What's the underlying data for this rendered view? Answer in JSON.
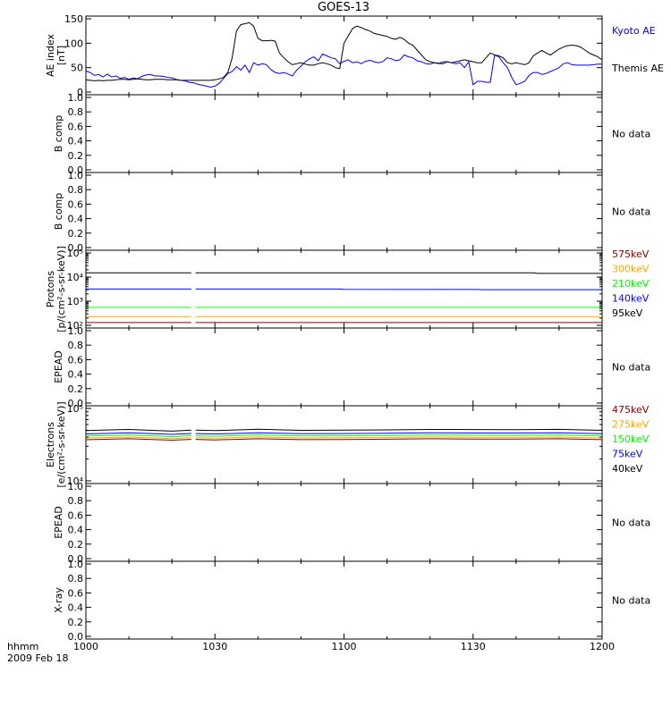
{
  "chart_data": {
    "title": "GOES-13",
    "type": "line",
    "x_ticks": [
      "1000",
      "1030",
      "1100",
      "1130",
      "1200"
    ],
    "x_range_minutes": [
      0,
      120
    ],
    "x_corner_label": "hhmm",
    "date_label": "2009 Feb 18",
    "panels": [
      {
        "id": "ae",
        "ylabel_lines": [
          "AE index",
          "[nT]"
        ],
        "yscale": "linear",
        "ylim": [
          0,
          150
        ],
        "yticks": [
          "0",
          "50",
          "100",
          "150"
        ],
        "series": [
          {
            "name": "Kyoto AE",
            "color": "#0000ff",
            "x": [
              0,
              1,
              2,
              3,
              4,
              5,
              6,
              7,
              8,
              9,
              10,
              11,
              12,
              13,
              14,
              15,
              16,
              17,
              18,
              19,
              20,
              21,
              22,
              23,
              24,
              25,
              26,
              27,
              28,
              29,
              30,
              31,
              32,
              33,
              34,
              35,
              36,
              37,
              38,
              39,
              40,
              41,
              42,
              43,
              44,
              45,
              46,
              47,
              48,
              49,
              50,
              51,
              52,
              53,
              54,
              55,
              56,
              57,
              58,
              59,
              60,
              61,
              62,
              63,
              64,
              65,
              66,
              67,
              68,
              69,
              70,
              71,
              72,
              73,
              74,
              75,
              76,
              77,
              78,
              79,
              80,
              81,
              82,
              83,
              84,
              85,
              86,
              87,
              88,
              89,
              90,
              91,
              92,
              93,
              94,
              95,
              96,
              97,
              98,
              99,
              100,
              101,
              102,
              103,
              104,
              105,
              106,
              107,
              108,
              109,
              110,
              111,
              112,
              113,
              114,
              115,
              116,
              117,
              118,
              119,
              120
            ],
            "y": [
              43,
              40,
              34,
              36,
              31,
              37,
              31,
              33,
              28,
              30,
              26,
              29,
              27,
              32,
              35,
              36,
              33,
              33,
              32,
              30,
              29,
              26,
              24,
              23,
              20,
              19,
              16,
              14,
              12,
              10,
              12,
              18,
              28,
              38,
              42,
              52,
              45,
              55,
              40,
              60,
              55,
              58,
              56,
              46,
              40,
              38,
              40,
              37,
              33,
              45,
              53,
              62,
              68,
              72,
              64,
              78,
              74,
              70,
              68,
              58,
              63,
              66,
              60,
              62,
              58,
              63,
              65,
              62,
              60,
              62,
              70,
              68,
              64,
              66,
              76,
              72,
              70,
              64,
              62,
              58,
              57,
              60,
              58,
              62,
              62,
              60,
              58,
              60,
              50,
              62,
              15,
              22,
              22,
              20,
              20,
              76,
              72,
              60,
              50,
              30,
              15,
              18,
              22,
              34,
              40,
              40,
              36,
              38,
              42,
              46,
              50,
              58,
              60,
              56,
              55,
              55,
              55,
              55,
              56,
              57,
              57
            ]
          },
          {
            "name": "Themis AE",
            "color": "#000000",
            "x": [
              0,
              1,
              2,
              3,
              4,
              5,
              6,
              7,
              8,
              9,
              10,
              11,
              12,
              13,
              14,
              15,
              16,
              17,
              18,
              19,
              20,
              21,
              22,
              23,
              24,
              25,
              26,
              27,
              28,
              29,
              30,
              31,
              32,
              33,
              34,
              35,
              36,
              37,
              38,
              39,
              40,
              41,
              42,
              43,
              44,
              45,
              46,
              47,
              48,
              49,
              50,
              51,
              52,
              53,
              54,
              55,
              56,
              57,
              58,
              59,
              60,
              61,
              62,
              63,
              64,
              65,
              66,
              67,
              68,
              69,
              70,
              71,
              72,
              73,
              74,
              75,
              76,
              77,
              78,
              79,
              80,
              81,
              82,
              83,
              84,
              85,
              86,
              87,
              88,
              89,
              90,
              91,
              92,
              93,
              94,
              95,
              96,
              97,
              98,
              99,
              100,
              101,
              102,
              103,
              104,
              105,
              106,
              107,
              108,
              109,
              110,
              111,
              112,
              113,
              114,
              115,
              116,
              117,
              118,
              119,
              120
            ],
            "y": [
              25,
              24,
              23,
              24,
              23,
              24,
              24,
              25,
              26,
              26,
              25,
              26,
              27,
              26,
              25,
              25,
              26,
              26,
              26,
              25,
              25,
              25,
              24,
              24,
              24,
              24,
              24,
              24,
              24,
              24,
              25,
              27,
              30,
              40,
              70,
              125,
              138,
              140,
              142,
              135,
              110,
              105,
              105,
              106,
              104,
              80,
              70,
              62,
              56,
              58,
              60,
              57,
              55,
              55,
              58,
              60,
              58,
              55,
              50,
              48,
              100,
              115,
              130,
              135,
              132,
              128,
              125,
              120,
              118,
              116,
              114,
              110,
              108,
              112,
              108,
              100,
              96,
              86,
              76,
              66,
              62,
              60,
              59,
              58,
              62,
              60,
              62,
              64,
              66,
              64,
              62,
              60,
              60,
              70,
              80,
              76,
              74,
              70,
              60,
              58,
              60,
              58,
              56,
              60,
              74,
              80,
              85,
              80,
              76,
              82,
              88,
              92,
              95,
              96,
              95,
              92,
              86,
              80,
              76,
              72,
              66
            ]
          }
        ],
        "legend": [
          {
            "label": "Kyoto AE",
            "color": "#0000ff"
          },
          {
            "label": "Themis AE",
            "color": "#000000"
          }
        ]
      },
      {
        "id": "b1",
        "ylabel_lines": [
          "B comp"
        ],
        "yscale": "linear",
        "ylim": [
          0,
          1
        ],
        "yticks": [
          "0.0",
          "0.2",
          "0.4",
          "0.6",
          "0.8",
          "1.0"
        ],
        "note": "No data"
      },
      {
        "id": "b2",
        "ylabel_lines": [
          "B comp"
        ],
        "yscale": "linear",
        "ylim": [
          0,
          1
        ],
        "yticks": [
          "0.0",
          "0.2",
          "0.4",
          "0.6",
          "0.8",
          "1.0"
        ],
        "note": "No data"
      },
      {
        "id": "protons",
        "ylabel_lines": [
          "Protons",
          "[p/(cm²-s-sr-keV)]"
        ],
        "yscale": "log",
        "ylim": [
          100,
          100000
        ],
        "yticks": [
          "10²",
          "10³",
          "10⁴",
          "10⁵"
        ],
        "gap_minutes": [
          24.5,
          25.5
        ],
        "series": [
          {
            "name": "575keV",
            "color": "#7f0000",
            "x": [
              0,
              120
            ],
            "y": [
              130,
              130
            ]
          },
          {
            "name": "300keV",
            "color": "#ffa500",
            "x": [
              0,
              120
            ],
            "y": [
              230,
              230
            ]
          },
          {
            "name": "210keV",
            "color": "#00ff00",
            "x": [
              0,
              120
            ],
            "y": [
              550,
              550
            ]
          },
          {
            "name": "140keV",
            "color": "#0000ff",
            "x": [
              0,
              59,
              60,
              91,
              92,
              120
            ],
            "y": [
              3200,
              3200,
              3100,
              3050,
              3000,
              3000
            ]
          },
          {
            "name": "95keV",
            "color": "#000000",
            "x": [
              0,
              104,
              105,
              120
            ],
            "y": [
              15000,
              15000,
              14200,
              14200
            ]
          }
        ],
        "legend": [
          {
            "label": "575keV",
            "color": "#7f0000"
          },
          {
            "label": "300keV",
            "color": "#ffa500"
          },
          {
            "label": "210keV",
            "color": "#00ff00"
          },
          {
            "label": "140keV",
            "color": "#0000ff"
          },
          {
            "label": "95keV",
            "color": "#000000"
          }
        ]
      },
      {
        "id": "epead1",
        "ylabel_lines": [
          "EPEAD"
        ],
        "yscale": "linear",
        "ylim": [
          0,
          1
        ],
        "yticks": [
          "0.0",
          "0.2",
          "0.4",
          "0.6",
          "0.8",
          "1.0"
        ],
        "note": "No data"
      },
      {
        "id": "electrons",
        "ylabel_lines": [
          "Electrons",
          "[e/(cm²-s-sr-keV)]"
        ],
        "yscale": "log",
        "ylim": [
          10000,
          100000
        ],
        "yticks": [
          "10⁴",
          "10⁵"
        ],
        "gap_minutes": [
          24.5,
          25.5
        ],
        "series": [
          {
            "name": "475keV",
            "color": "#7f0000",
            "x": [
              0,
              10,
              20,
              30,
              40,
              50,
              60,
              70,
              80,
              90,
              100,
              110,
              120
            ],
            "y": [
              37000,
              37500,
              36800,
              37200,
              37600,
              37000,
              37800,
              37400,
              37600,
              38200,
              38000,
              37500,
              37200
            ]
          },
          {
            "name": "275keV",
            "color": "#ffa500",
            "x": [
              0,
              10,
              20,
              30,
              40,
              50,
              60,
              70,
              80,
              90,
              100,
              110,
              120
            ],
            "y": [
              39000,
              39600,
              38800,
              39300,
              39800,
              39000,
              40000,
              39600,
              39800,
              40500,
              40200,
              39600,
              39300
            ]
          },
          {
            "name": "150keV",
            "color": "#00ff00",
            "x": [
              0,
              10,
              20,
              30,
              40,
              50,
              60,
              70,
              80,
              90,
              100,
              110,
              120
            ],
            "y": [
              41500,
              42200,
              41200,
              41800,
              42400,
              41600,
              42600,
              42100,
              42300,
              43200,
              42800,
              42200,
              41800
            ]
          },
          {
            "name": "75keV",
            "color": "#0000ff",
            "x": [
              0,
              10,
              20,
              30,
              40,
              50,
              60,
              70,
              80,
              90,
              100,
              110,
              120
            ],
            "y": [
              44500,
              45300,
              44200,
              44900,
              45500,
              44600,
              45800,
              45200,
              45400,
              46400,
              46000,
              45300,
              44900
            ]
          },
          {
            "name": "40keV",
            "color": "#000000",
            "x": [
              0,
              10,
              20,
              30,
              40,
              50,
              60,
              70,
              80,
              90,
              100,
              110,
              120
            ],
            "y": [
              49500,
              50500,
              49000,
              50000,
              50800,
              49700,
              51000,
              50300,
              50600,
              51800,
              51300,
              50500,
              50000
            ]
          }
        ],
        "legend": [
          {
            "label": "475keV",
            "color": "#7f0000"
          },
          {
            "label": "275keV",
            "color": "#ffa500"
          },
          {
            "label": "150keV",
            "color": "#00ff00"
          },
          {
            "label": "75keV",
            "color": "#0000ff"
          },
          {
            "label": "40keV",
            "color": "#000000"
          }
        ]
      },
      {
        "id": "epead2",
        "ylabel_lines": [
          "EPEAD"
        ],
        "yscale": "linear",
        "ylim": [
          0,
          1
        ],
        "yticks": [
          "0.0",
          "0.2",
          "0.4",
          "0.6",
          "0.8",
          "1.0"
        ],
        "note": "No data"
      },
      {
        "id": "xray",
        "ylabel_lines": [
          "X-ray"
        ],
        "yscale": "linear",
        "ylim": [
          0,
          1
        ],
        "yticks": [
          "0.0",
          "0.2",
          "0.4",
          "0.6",
          "0.8",
          "1.0"
        ],
        "note": "No data"
      }
    ]
  }
}
